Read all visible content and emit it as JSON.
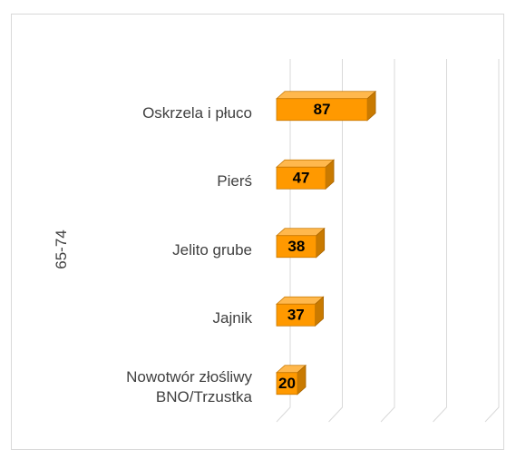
{
  "chart_data": {
    "type": "bar3d",
    "orientation": "horizontal",
    "group_label": "65-74",
    "categories": [
      "Oskrzela i płuco",
      "Pierś",
      "Jelito grube",
      "Jajnik",
      "Nowotwór złośliwy BNO/Trzustka"
    ],
    "values": [
      87,
      47,
      38,
      37,
      20
    ],
    "color": "#ff9900",
    "xlim": [
      0,
      200
    ],
    "xticks": [
      0,
      50,
      100,
      150,
      200
    ],
    "grid": true
  }
}
